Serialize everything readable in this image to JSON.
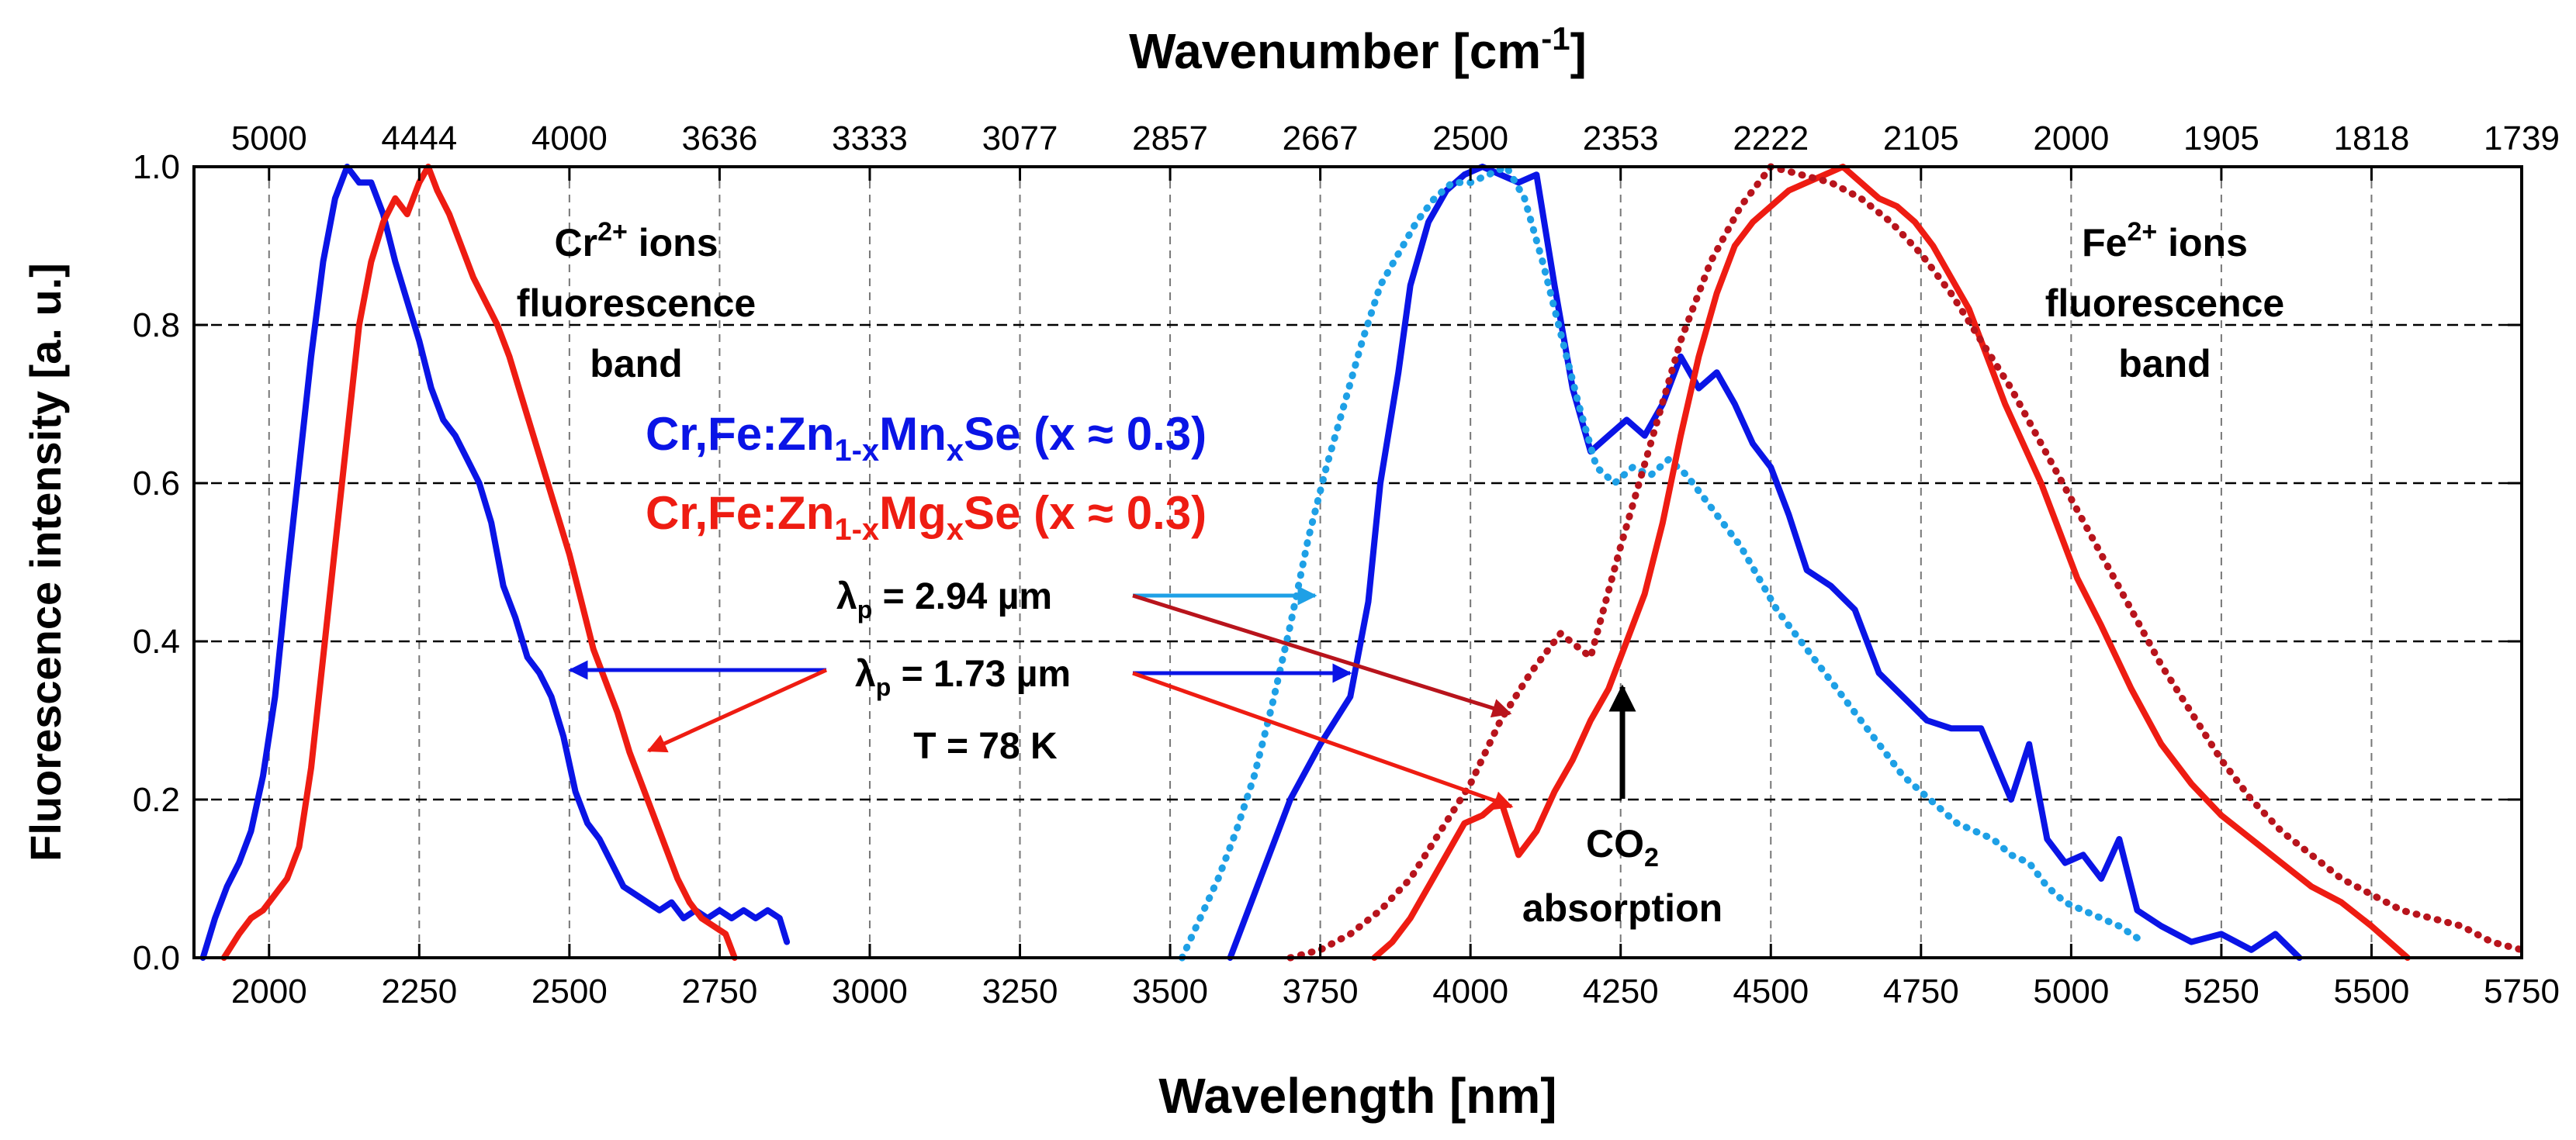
{
  "chart_data": {
    "type": "line",
    "title": "",
    "xlabel": "Wavelength [nm]",
    "ylabel": "Fluorescence intensity [a. u.]",
    "top_xlabel": {
      "base": "Wavenumber [cm",
      "sup": "-1",
      "close": "]"
    },
    "xlim": [
      1875,
      5750
    ],
    "ylim": [
      0,
      1.0
    ],
    "grid": true,
    "x_ticks": [
      2000,
      2250,
      2500,
      2750,
      3000,
      3250,
      3500,
      3750,
      4000,
      4250,
      4500,
      4750,
      5000,
      5250,
      5500,
      5750
    ],
    "x_tick_labels": [
      "2000",
      "2250",
      "2500",
      "2750",
      "3000",
      "3250",
      "3500",
      "3750",
      "4000",
      "4250",
      "4500",
      "4750",
      "5000",
      "5250",
      "5500",
      "5750"
    ],
    "y_ticks": [
      0.0,
      0.2,
      0.4,
      0.6,
      0.8,
      1.0
    ],
    "y_tick_labels": [
      "0.0",
      "0.2",
      "0.4",
      "0.6",
      "0.8",
      "1.0"
    ],
    "top_ticks": [
      {
        "wl": 2000,
        "label": "5000"
      },
      {
        "wl": 2250,
        "label": "4444"
      },
      {
        "wl": 2500,
        "label": "4000"
      },
      {
        "wl": 2750,
        "label": "3636"
      },
      {
        "wl": 3000,
        "label": "3333"
      },
      {
        "wl": 3250,
        "label": "3077"
      },
      {
        "wl": 3500,
        "label": "2857"
      },
      {
        "wl": 3750,
        "label": "2667"
      },
      {
        "wl": 4000,
        "label": "2500"
      },
      {
        "wl": 4250,
        "label": "2353"
      },
      {
        "wl": 4500,
        "label": "2222"
      },
      {
        "wl": 4750,
        "label": "2105"
      },
      {
        "wl": 5000,
        "label": "2000"
      },
      {
        "wl": 5250,
        "label": "1905"
      },
      {
        "wl": 5500,
        "label": "1818"
      },
      {
        "wl": 5750,
        "label": "1739"
      }
    ],
    "series": [
      {
        "name": "Cr,Fe:Zn1-xMnxSe, Cr2+ band (λp = 1.73 µm)",
        "color": "#0a14e6",
        "style": "solid",
        "x": [
          1890,
          1910,
          1930,
          1950,
          1970,
          1990,
          2010,
          2030,
          2050,
          2070,
          2090,
          2110,
          2130,
          2150,
          2170,
          2190,
          2210,
          2230,
          2250,
          2270,
          2290,
          2310,
          2330,
          2350,
          2370,
          2390,
          2410,
          2430,
          2450,
          2470,
          2490,
          2510,
          2530,
          2550,
          2570,
          2590,
          2610,
          2630,
          2650,
          2670,
          2690,
          2710,
          2730,
          2750,
          2770,
          2790,
          2810,
          2830,
          2850,
          2862
        ],
        "y": [
          0.0,
          0.05,
          0.09,
          0.12,
          0.16,
          0.23,
          0.33,
          0.48,
          0.62,
          0.76,
          0.88,
          0.96,
          1.0,
          0.98,
          0.98,
          0.94,
          0.88,
          0.83,
          0.78,
          0.72,
          0.68,
          0.66,
          0.63,
          0.6,
          0.55,
          0.47,
          0.43,
          0.38,
          0.36,
          0.33,
          0.28,
          0.21,
          0.17,
          0.15,
          0.12,
          0.09,
          0.08,
          0.07,
          0.06,
          0.07,
          0.05,
          0.06,
          0.05,
          0.06,
          0.05,
          0.06,
          0.05,
          0.06,
          0.05,
          0.02
        ]
      },
      {
        "name": "Cr,Fe:Zn1-xMgxSe, Cr2+ band (λp = 1.73 µm)",
        "color": "#ee1c12",
        "style": "solid",
        "x": [
          1925,
          1950,
          1970,
          1990,
          2010,
          2030,
          2050,
          2070,
          2090,
          2110,
          2130,
          2150,
          2170,
          2190,
          2210,
          2230,
          2250,
          2265,
          2280,
          2300,
          2320,
          2340,
          2360,
          2380,
          2400,
          2420,
          2440,
          2460,
          2480,
          2500,
          2520,
          2540,
          2560,
          2580,
          2600,
          2620,
          2640,
          2660,
          2680,
          2700,
          2720,
          2740,
          2760,
          2775
        ],
        "y": [
          0.0,
          0.03,
          0.05,
          0.06,
          0.08,
          0.1,
          0.14,
          0.24,
          0.38,
          0.52,
          0.66,
          0.8,
          0.88,
          0.93,
          0.96,
          0.94,
          0.98,
          1.0,
          0.97,
          0.94,
          0.9,
          0.86,
          0.83,
          0.8,
          0.76,
          0.71,
          0.66,
          0.61,
          0.56,
          0.51,
          0.45,
          0.39,
          0.35,
          0.31,
          0.26,
          0.22,
          0.18,
          0.14,
          0.1,
          0.07,
          0.05,
          0.04,
          0.03,
          0.0
        ]
      },
      {
        "name": "Cr,Fe:Zn1-xMnxSe, Fe2+ band (λp = 1.73 µm)",
        "color": "#0a14e6",
        "style": "solid",
        "x": [
          3600,
          3650,
          3700,
          3750,
          3800,
          3830,
          3850,
          3880,
          3900,
          3930,
          3960,
          3990,
          4020,
          4050,
          4080,
          4110,
          4140,
          4170,
          4200,
          4230,
          4260,
          4290,
          4320,
          4350,
          4380,
          4410,
          4440,
          4470,
          4500,
          4530,
          4560,
          4600,
          4640,
          4680,
          4720,
          4760,
          4800,
          4850,
          4900,
          4930,
          4960,
          4990,
          5020,
          5050,
          5080,
          5110,
          5150,
          5200,
          5250,
          5300,
          5340,
          5380
        ],
        "y": [
          0.0,
          0.1,
          0.2,
          0.27,
          0.33,
          0.45,
          0.6,
          0.74,
          0.85,
          0.93,
          0.97,
          0.99,
          1.0,
          0.99,
          0.98,
          0.99,
          0.85,
          0.72,
          0.64,
          0.66,
          0.68,
          0.66,
          0.7,
          0.76,
          0.72,
          0.74,
          0.7,
          0.65,
          0.62,
          0.56,
          0.49,
          0.47,
          0.44,
          0.36,
          0.33,
          0.3,
          0.29,
          0.29,
          0.2,
          0.27,
          0.15,
          0.12,
          0.13,
          0.1,
          0.15,
          0.06,
          0.04,
          0.02,
          0.03,
          0.01,
          0.03,
          0.0
        ]
      },
      {
        "name": "Cr,Fe:Zn1-xMnxSe, Fe2+ band (λp = 2.94 µm)",
        "color": "#1ea0e6",
        "style": "dotted",
        "x": [
          3520,
          3550,
          3580,
          3610,
          3640,
          3670,
          3700,
          3730,
          3760,
          3790,
          3820,
          3850,
          3880,
          3910,
          3940,
          3970,
          4000,
          4030,
          4060,
          4090,
          4120,
          4150,
          4180,
          4210,
          4240,
          4270,
          4300,
          4330,
          4360,
          4390,
          4420,
          4450,
          4480,
          4510,
          4540,
          4570,
          4600,
          4630,
          4660,
          4690,
          4720,
          4750,
          4780,
          4810,
          4840,
          4870,
          4900,
          4930,
          4960,
          4990,
          5020,
          5050,
          5080,
          5120
        ],
        "y": [
          0.0,
          0.05,
          0.1,
          0.16,
          0.23,
          0.32,
          0.42,
          0.53,
          0.62,
          0.7,
          0.78,
          0.85,
          0.89,
          0.93,
          0.96,
          0.98,
          0.98,
          0.99,
          1.0,
          0.96,
          0.88,
          0.79,
          0.7,
          0.62,
          0.6,
          0.62,
          0.61,
          0.63,
          0.61,
          0.58,
          0.55,
          0.52,
          0.48,
          0.44,
          0.41,
          0.38,
          0.35,
          0.32,
          0.29,
          0.26,
          0.23,
          0.21,
          0.19,
          0.17,
          0.16,
          0.15,
          0.13,
          0.12,
          0.09,
          0.07,
          0.06,
          0.05,
          0.04,
          0.02
        ]
      },
      {
        "name": "Cr,Fe:Zn1-xMgxSe, Fe2+ band (λp = 1.73 µm)",
        "color": "#ee1c12",
        "style": "solid",
        "x": [
          3840,
          3870,
          3900,
          3930,
          3960,
          3990,
          4020,
          4050,
          4080,
          4110,
          4140,
          4170,
          4200,
          4230,
          4260,
          4290,
          4320,
          4350,
          4380,
          4410,
          4440,
          4470,
          4500,
          4530,
          4560,
          4590,
          4620,
          4650,
          4680,
          4710,
          4740,
          4770,
          4800,
          4830,
          4860,
          4890,
          4920,
          4950,
          4980,
          5010,
          5050,
          5100,
          5150,
          5200,
          5250,
          5300,
          5350,
          5400,
          5450,
          5500,
          5560
        ],
        "y": [
          0.0,
          0.02,
          0.05,
          0.09,
          0.13,
          0.17,
          0.18,
          0.2,
          0.13,
          0.16,
          0.21,
          0.25,
          0.3,
          0.34,
          0.4,
          0.46,
          0.55,
          0.66,
          0.76,
          0.84,
          0.9,
          0.93,
          0.95,
          0.97,
          0.98,
          0.99,
          1.0,
          0.98,
          0.96,
          0.95,
          0.93,
          0.9,
          0.86,
          0.82,
          0.76,
          0.7,
          0.65,
          0.6,
          0.54,
          0.48,
          0.42,
          0.34,
          0.27,
          0.22,
          0.18,
          0.15,
          0.12,
          0.09,
          0.07,
          0.04,
          0.0
        ]
      },
      {
        "name": "Cr,Fe:Zn1-xMgxSe, Fe2+ band (λp = 2.94 µm)",
        "color": "#b8141c",
        "style": "dotted",
        "x": [
          3700,
          3750,
          3800,
          3850,
          3900,
          3950,
          4000,
          4050,
          4100,
          4150,
          4200,
          4250,
          4300,
          4350,
          4400,
          4450,
          4500,
          4550,
          4600,
          4650,
          4700,
          4750,
          4800,
          4850,
          4900,
          4950,
          5000,
          5050,
          5100,
          5150,
          5200,
          5250,
          5300,
          5350,
          5400,
          5450,
          5500,
          5550,
          5600,
          5650,
          5700,
          5750
        ],
        "y": [
          0.0,
          0.01,
          0.03,
          0.06,
          0.1,
          0.16,
          0.22,
          0.3,
          0.36,
          0.41,
          0.38,
          0.52,
          0.65,
          0.78,
          0.88,
          0.95,
          1.0,
          0.99,
          0.98,
          0.96,
          0.93,
          0.89,
          0.84,
          0.78,
          0.72,
          0.65,
          0.58,
          0.51,
          0.44,
          0.37,
          0.31,
          0.25,
          0.2,
          0.16,
          0.13,
          0.1,
          0.08,
          0.06,
          0.05,
          0.04,
          0.02,
          0.01
        ]
      }
    ],
    "annotations": {
      "cr_band": {
        "ion": "Cr",
        "charge": "2+",
        "rest": " ions",
        "line2": "fluorescence",
        "line3": "band"
      },
      "fe_band": {
        "ion": "Fe",
        "charge": "2+",
        "rest": " ions",
        "line2": "fluorescence",
        "line3": "band"
      },
      "sample_mn": {
        "a": "Cr,Fe:Zn",
        "sub1": "1-x",
        "b": "Mn",
        "sub2": "x",
        "c": "Se (x ",
        "approx": "≈",
        "d": " 0.3)",
        "color": "#0a14e6"
      },
      "sample_mg": {
        "a": "Cr,Fe:Zn",
        "sub1": "1-x",
        "b": "Mg",
        "sub2": "x",
        "c": "Se (x ",
        "approx": "≈",
        "d": " 0.3)",
        "color": "#ee1c12"
      },
      "pump_294": {
        "sym": "λ",
        "sub": "p",
        "rest": " = 2.94 µm"
      },
      "pump_173": {
        "sym": "λ",
        "sub": "p",
        "rest": " = 1.73 µm"
      },
      "temperature": "T = 78 K",
      "co2": {
        "a": "CO",
        "sub": "2",
        "line2": "absorption"
      }
    }
  }
}
